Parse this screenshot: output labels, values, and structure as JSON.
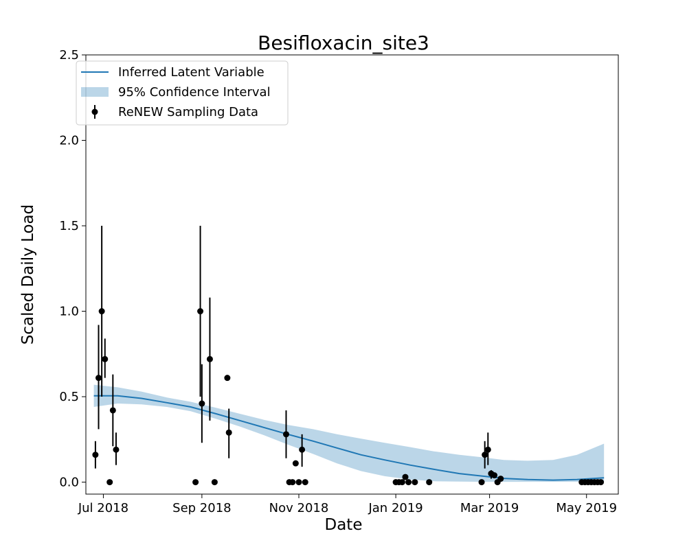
{
  "chart_data": {
    "type": "scatter",
    "title": "Besifloxacin_site3",
    "xlabel": "Date",
    "ylabel": "Scaled Daily Load",
    "xlim": [
      "2018-06-20",
      "2019-05-21"
    ],
    "ylim": [
      -0.07,
      2.5
    ],
    "x_ticks": [
      {
        "date": "2018-07-01",
        "label": "Jul 2018"
      },
      {
        "date": "2018-09-01",
        "label": "Sep 2018"
      },
      {
        "date": "2018-11-01",
        "label": "Nov 2018"
      },
      {
        "date": "2019-01-01",
        "label": "Jan 2019"
      },
      {
        "date": "2019-03-01",
        "label": "Mar 2019"
      },
      {
        "date": "2019-05-01",
        "label": "May 2019"
      }
    ],
    "y_ticks": [
      {
        "value": 0.0,
        "label": "0.0"
      },
      {
        "value": 0.5,
        "label": "0.5"
      },
      {
        "value": 1.0,
        "label": "1.0"
      },
      {
        "value": 1.5,
        "label": "1.5"
      },
      {
        "value": 2.0,
        "label": "2.0"
      },
      {
        "value": 2.5,
        "label": "2.5"
      }
    ],
    "grid": false,
    "legend_placement": "top-left",
    "colors": {
      "latent": "#1f77b4",
      "ci": "#1f77b4",
      "data": "#000000"
    },
    "series": [
      {
        "name": "Inferred Latent Variable",
        "kind": "line",
        "x": [
          "2018-06-25",
          "2018-07-10",
          "2018-07-25",
          "2018-08-10",
          "2018-08-25",
          "2018-09-10",
          "2018-09-25",
          "2018-10-10",
          "2018-10-25",
          "2018-11-10",
          "2018-11-25",
          "2018-12-10",
          "2018-12-25",
          "2019-01-10",
          "2019-01-25",
          "2019-02-10",
          "2019-02-25",
          "2019-03-10",
          "2019-03-25",
          "2019-04-10",
          "2019-04-25",
          "2019-05-12"
        ],
        "y": [
          0.505,
          0.505,
          0.49,
          0.465,
          0.44,
          0.4,
          0.36,
          0.32,
          0.28,
          0.24,
          0.2,
          0.16,
          0.13,
          0.1,
          0.075,
          0.05,
          0.035,
          0.022,
          0.015,
          0.012,
          0.015,
          0.025
        ]
      },
      {
        "name": "95% Confidence Interval",
        "kind": "band",
        "x": [
          "2018-06-25",
          "2018-07-10",
          "2018-07-25",
          "2018-08-10",
          "2018-08-25",
          "2018-09-10",
          "2018-09-25",
          "2018-10-10",
          "2018-10-25",
          "2018-11-10",
          "2018-11-25",
          "2018-12-10",
          "2018-12-25",
          "2019-01-10",
          "2019-01-25",
          "2019-02-10",
          "2019-02-25",
          "2019-03-10",
          "2019-03-25",
          "2019-04-10",
          "2019-04-25",
          "2019-05-12"
        ],
        "lower": [
          0.44,
          0.46,
          0.455,
          0.44,
          0.415,
          0.37,
          0.325,
          0.275,
          0.22,
          0.165,
          0.11,
          0.065,
          0.035,
          0.015,
          0.005,
          0.003,
          0.002,
          0.002,
          0.002,
          0.002,
          0.002,
          0.003
        ],
        "upper": [
          0.57,
          0.555,
          0.53,
          0.495,
          0.47,
          0.435,
          0.4,
          0.365,
          0.335,
          0.31,
          0.28,
          0.255,
          0.23,
          0.205,
          0.18,
          0.16,
          0.145,
          0.13,
          0.125,
          0.13,
          0.16,
          0.225
        ]
      },
      {
        "name": "ReNEW Sampling Data",
        "kind": "errorbar",
        "points": [
          {
            "x": "2018-06-26",
            "y": 0.16,
            "lo": 0.08,
            "hi": 0.24
          },
          {
            "x": "2018-06-28",
            "y": 0.61,
            "lo": 0.31,
            "hi": 0.92
          },
          {
            "x": "2018-06-30",
            "y": 1.0,
            "lo": 0.5,
            "hi": 1.5
          },
          {
            "x": "2018-07-02",
            "y": 0.72,
            "lo": 0.61,
            "hi": 0.84
          },
          {
            "x": "2018-07-05",
            "y": 0.0
          },
          {
            "x": "2018-07-07",
            "y": 0.42,
            "lo": 0.21,
            "hi": 0.63
          },
          {
            "x": "2018-07-09",
            "y": 0.19,
            "lo": 0.1,
            "hi": 0.29
          },
          {
            "x": "2018-08-28",
            "y": 0.0
          },
          {
            "x": "2018-08-31",
            "y": 1.0,
            "lo": 0.5,
            "hi": 1.5
          },
          {
            "x": "2018-09-01",
            "y": 0.46,
            "lo": 0.23,
            "hi": 0.69
          },
          {
            "x": "2018-09-06",
            "y": 0.72,
            "lo": 0.36,
            "hi": 1.08
          },
          {
            "x": "2018-09-09",
            "y": 0.0
          },
          {
            "x": "2018-09-17",
            "y": 0.61
          },
          {
            "x": "2018-09-18",
            "y": 0.29,
            "lo": 0.14,
            "hi": 0.43
          },
          {
            "x": "2018-10-24",
            "y": 0.28,
            "lo": 0.14,
            "hi": 0.42
          },
          {
            "x": "2018-10-26",
            "y": 0.0
          },
          {
            "x": "2018-10-28",
            "y": 0.0
          },
          {
            "x": "2018-10-30",
            "y": 0.11
          },
          {
            "x": "2018-11-01",
            "y": 0.0
          },
          {
            "x": "2018-11-03",
            "y": 0.19,
            "lo": 0.09,
            "hi": 0.28
          },
          {
            "x": "2018-11-05",
            "y": 0.0
          },
          {
            "x": "2019-01-01",
            "y": 0.0
          },
          {
            "x": "2019-01-03",
            "y": 0.0
          },
          {
            "x": "2019-01-05",
            "y": 0.0
          },
          {
            "x": "2019-01-07",
            "y": 0.03
          },
          {
            "x": "2019-01-09",
            "y": 0.0
          },
          {
            "x": "2019-01-13",
            "y": 0.0
          },
          {
            "x": "2019-01-22",
            "y": 0.0
          },
          {
            "x": "2019-02-24",
            "y": 0.0
          },
          {
            "x": "2019-02-26",
            "y": 0.16,
            "lo": 0.08,
            "hi": 0.24
          },
          {
            "x": "2019-02-28",
            "y": 0.19,
            "lo": 0.1,
            "hi": 0.29
          },
          {
            "x": "2019-03-02",
            "y": 0.05,
            "lo": 0.02,
            "hi": 0.07
          },
          {
            "x": "2019-03-04",
            "y": 0.04
          },
          {
            "x": "2019-03-06",
            "y": 0.0
          },
          {
            "x": "2019-03-08",
            "y": 0.02
          },
          {
            "x": "2019-04-28",
            "y": 0.0
          },
          {
            "x": "2019-04-30",
            "y": 0.0
          },
          {
            "x": "2019-05-02",
            "y": 0.0
          },
          {
            "x": "2019-05-04",
            "y": 0.0
          },
          {
            "x": "2019-05-06",
            "y": 0.0
          },
          {
            "x": "2019-05-08",
            "y": 0.0
          },
          {
            "x": "2019-05-10",
            "y": 0.0
          }
        ]
      }
    ]
  }
}
